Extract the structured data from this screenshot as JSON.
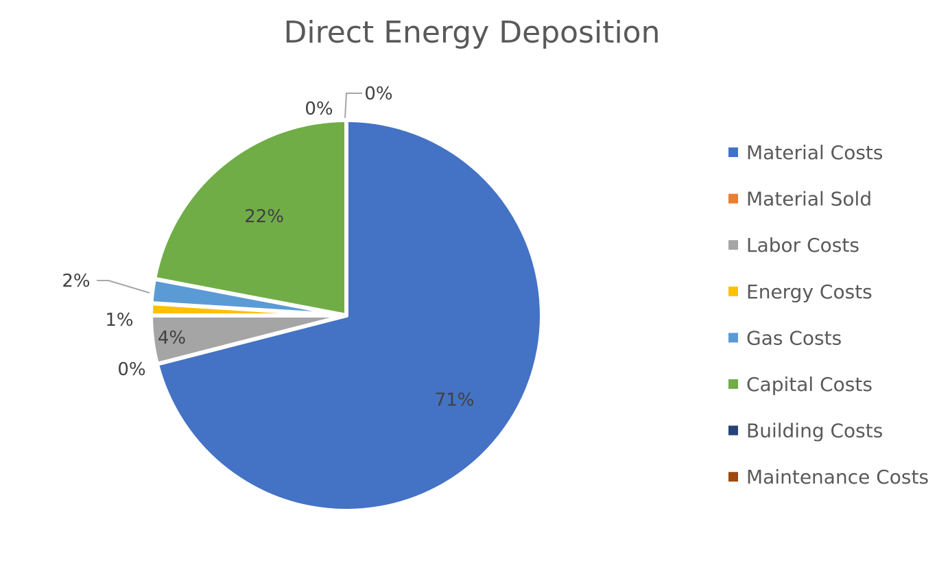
{
  "chart_data": {
    "type": "pie",
    "title": "Direct Energy Deposition",
    "labels": [
      "Material Costs",
      "Material Sold",
      "Labor Costs",
      "Energy Costs",
      "Gas Costs",
      "Capital Costs",
      "Building Costs",
      "Maintenance Costs"
    ],
    "values": [
      71,
      0,
      4,
      1,
      2,
      22,
      0,
      0
    ],
    "data_labels": [
      "71%",
      "0%",
      "4%",
      "1%",
      "2%",
      "22%",
      "0%",
      "0%"
    ],
    "colors": [
      "#4472C4",
      "#ED7D31",
      "#A5A5A5",
      "#FFC000",
      "#5B9BD5",
      "#70AD47",
      "#264478",
      "#9E480E"
    ],
    "legend_position": "right"
  }
}
